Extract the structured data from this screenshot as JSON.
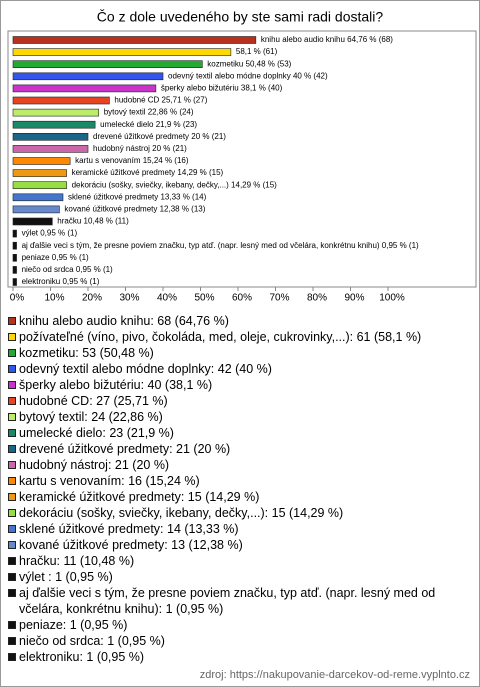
{
  "chart_data": {
    "type": "bar",
    "orientation": "horizontal",
    "title": "Čo z dole uvedeného by ste sami radi dostali?",
    "categories": [
      "knihu alebo audio knihu: 68 (64,76 %)",
      "požívateľné (víno, pivo, čokoláda, med, oleje, cukrovinky,...): 61 (58,1 %)",
      "kozmetiku: 53 (50,48 %)",
      "odevný textil alebo módne doplnky: 42 (40 %)",
      "šperky alebo bižutériu: 40 (38,1 %)",
      "hudobné CD: 27 (25,71 %)",
      "bytový textil: 24 (22,86 %)",
      "umelecké dielo: 23 (21,9 %)",
      "drevené úžitkové predmety: 21 (20 %)",
      "hudobný nástroj: 21 (20 %)",
      "kartu s venovaním: 16 (15,24 %)",
      "keramické úžitkové predmety: 15 (14,29 %)",
      "dekoráciu (sošky, sviečky, ikebany, dečky,...): 15 (14,29 %)",
      "sklené úžitkové predmety: 14 (13,33 %)",
      "kované úžitkové predmety: 13 (12,38 %)",
      "hračku: 11 (10,48 %)",
      "výlet : 1 (0,95 %)",
      "aj ďalšie veci s tým, že presne poviem značku, typ atď. (napr. lesný med od včelára, konkrétnu knihu): 1 (0,95 %)",
      "peniaze: 1 (0,95 %)",
      "niečo od srdca: 1 (0,95 %)",
      "elektroniku: 1 (0,95 %)"
    ],
    "values": [
      64.76,
      58.1,
      50.48,
      40,
      38.1,
      25.71,
      22.86,
      21.9,
      20,
      20,
      15.24,
      14.29,
      14.29,
      13.33,
      12.38,
      10.48,
      0.95,
      0.95,
      0.95,
      0.95,
      0.95
    ],
    "value_labels": [
      "knihu alebo audio knihu 64,76 % (68)",
      "58,1 % (61)",
      "kozmetiku 50,48 % (53)",
      "odevný textil alebo módne doplnky 40 % (42)",
      "šperky alebo bižutériu 38,1 % (40)",
      "hudobné CD 25,71 % (27)",
      "bytový textil 22,86 % (24)",
      "umelecké dielo 21,9 % (23)",
      "drevené úžitkové predmety 20 % (21)",
      "hudobný nástroj 20 % (21)",
      "kartu s venovaním 15,24 % (16)",
      "keramické úžitkové predmety 14,29 % (15)",
      "dekoráciu (sošky, sviečky, ikebany, dečky,...) 14,29 % (15)",
      "sklené úžitkové predmety 13,33 % (14)",
      "kované úžitkové predmety 12,38 % (13)",
      "hračku 10,48 % (11)",
      "výlet  0,95 % (1)",
      "aj ďalšie veci s tým, že presne poviem značku, typ atď. (napr. lesný med od včelára, konkrétnu knihu) 0,95 % (1)",
      "peniaze 0,95 % (1)",
      "niečo od srdca 0,95 % (1)",
      "elektroniku 0,95 % (1)"
    ],
    "colors": [
      "#b8311f",
      "#ffd800",
      "#22aa33",
      "#3355ee",
      "#cc33cc",
      "#e84422",
      "#bbee66",
      "#1a8a66",
      "#1a6688",
      "#cc66aa",
      "#ff8800",
      "#ee9911",
      "#99dd44",
      "#4477cc",
      "#6688cc",
      "#111111",
      "#111111",
      "#111111",
      "#111111",
      "#111111",
      "#111111"
    ],
    "xlim": [
      0,
      100
    ],
    "xticks": [
      {
        "value": 0,
        "label": "0%"
      },
      {
        "value": 10,
        "label": "10%"
      },
      {
        "value": 20,
        "label": "20%"
      },
      {
        "value": 30,
        "label": "30%"
      },
      {
        "value": 40,
        "label": "40%"
      },
      {
        "value": 50,
        "label": "50%"
      },
      {
        "value": 60,
        "label": "60%"
      },
      {
        "value": 70,
        "label": "70%"
      },
      {
        "value": 80,
        "label": "80%"
      },
      {
        "value": 90,
        "label": "90%"
      },
      {
        "value": 100,
        "label": "100%"
      }
    ],
    "grid": false,
    "source": "zdroj: https://nakupovanie-darcekov-od-reme.vyplnto.cz"
  }
}
